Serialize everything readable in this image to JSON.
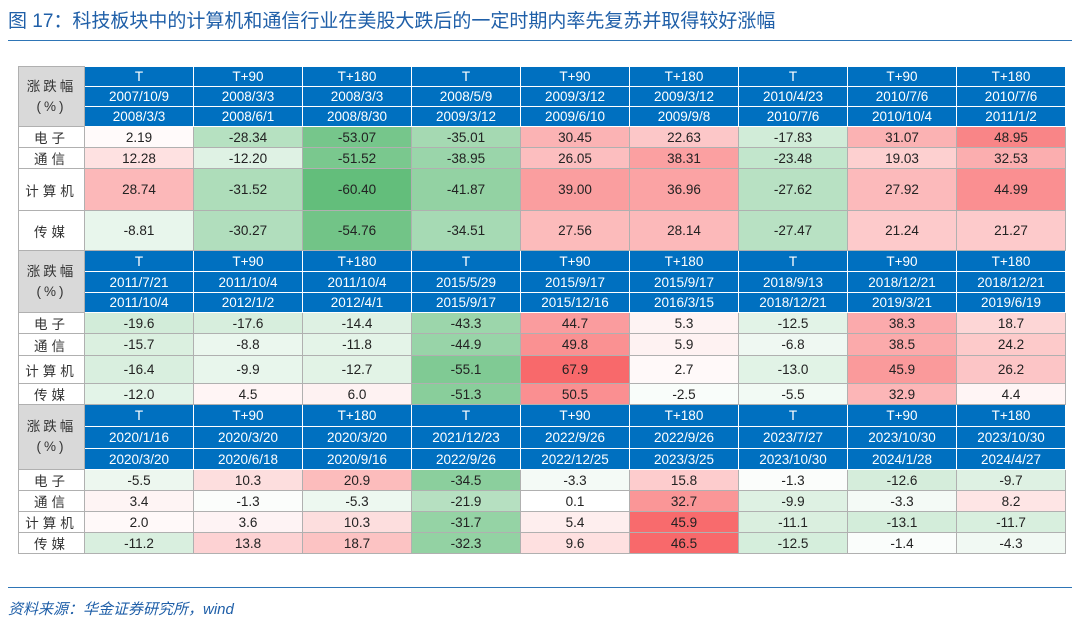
{
  "title": "图 17：科技板块中的计算机和通信行业在美股大跌后的一定时期内率先复苏并取得较好涨幅",
  "source": "资料来源：华金证券研究所，wind",
  "blocks": [
    {
      "label": [
        "涨跌幅",
        "(%)"
      ],
      "headers": [
        [
          "T",
          "T+90",
          "T+180",
          "T",
          "T+90",
          "T+180",
          "T",
          "T+90",
          "T+180"
        ],
        [
          "2007/10/9",
          "2008/3/3",
          "2008/3/3",
          "2008/5/9",
          "2009/3/12",
          "2009/3/12",
          "2010/4/23",
          "2010/7/6",
          "2010/7/6"
        ],
        [
          "2008/3/3",
          "2008/6/1",
          "2008/8/30",
          "2009/3/12",
          "2009/6/10",
          "2009/9/8",
          "2010/7/6",
          "2010/10/4",
          "2011/1/2"
        ]
      ],
      "rows": [
        {
          "name": "电子",
          "values": [
            "2.19",
            "-28.34",
            "-53.07",
            "-35.01",
            "30.45",
            "22.63",
            "-17.83",
            "31.07",
            "48.95"
          ]
        },
        {
          "name": "通信",
          "values": [
            "12.28",
            "-12.20",
            "-51.52",
            "-38.95",
            "26.05",
            "38.31",
            "-23.48",
            "19.03",
            "32.53"
          ]
        },
        {
          "name": "计算机",
          "values": [
            "28.74",
            "-31.52",
            "-60.40",
            "-41.87",
            "39.00",
            "36.96",
            "-27.62",
            "27.92",
            "44.99"
          ]
        },
        {
          "name": "传媒",
          "values": [
            "-8.81",
            "-30.27",
            "-54.76",
            "-34.51",
            "27.56",
            "28.14",
            "-27.47",
            "21.24",
            "21.27"
          ]
        }
      ]
    },
    {
      "label": [
        "涨跌幅",
        "(%)"
      ],
      "headers": [
        [
          "T",
          "T+90",
          "T+180",
          "T",
          "T+90",
          "T+180",
          "T",
          "T+90",
          "T+180"
        ],
        [
          "2011/7/21",
          "2011/10/4",
          "2011/10/4",
          "2015/5/29",
          "2015/9/17",
          "2015/9/17",
          "2018/9/13",
          "2018/12/21",
          "2018/12/21"
        ],
        [
          "2011/10/4",
          "2012/1/2",
          "2012/4/1",
          "2015/9/17",
          "2015/12/16",
          "2016/3/15",
          "2018/12/21",
          "2019/3/21",
          "2019/6/19"
        ]
      ],
      "rows": [
        {
          "name": "电子",
          "values": [
            "-19.6",
            "-17.6",
            "-14.4",
            "-43.3",
            "44.7",
            "5.3",
            "-12.5",
            "38.3",
            "18.7"
          ]
        },
        {
          "name": "通信",
          "values": [
            "-15.7",
            "-8.8",
            "-11.8",
            "-44.9",
            "49.8",
            "5.9",
            "-6.8",
            "38.5",
            "24.2"
          ]
        },
        {
          "name": "计算机",
          "values": [
            "-16.4",
            "-9.9",
            "-12.7",
            "-55.1",
            "67.9",
            "2.7",
            "-13.0",
            "45.9",
            "26.2"
          ]
        },
        {
          "name": "传媒",
          "values": [
            "-12.0",
            "4.5",
            "6.0",
            "-51.3",
            "50.5",
            "-2.5",
            "-5.5",
            "32.9",
            "4.4"
          ]
        }
      ]
    },
    {
      "label": [
        "涨跌幅",
        "(%)"
      ],
      "headers": [
        [
          "T",
          "T+90",
          "T+180",
          "T",
          "T+90",
          "T+180",
          "T",
          "T+90",
          "T+180"
        ],
        [
          "2020/1/16",
          "2020/3/20",
          "2020/3/20",
          "2021/12/23",
          "2022/9/26",
          "2022/9/26",
          "2023/7/27",
          "2023/10/30",
          "2023/10/30"
        ],
        [
          "2020/3/20",
          "2020/6/18",
          "2020/9/16",
          "2022/9/26",
          "2022/12/25",
          "2023/3/25",
          "2023/10/30",
          "2024/1/28",
          "2024/4/27"
        ]
      ],
      "rows": [
        {
          "name": "电子",
          "values": [
            "-5.5",
            "10.3",
            "20.9",
            "-34.5",
            "-3.3",
            "15.8",
            "-1.3",
            "-12.6",
            "-9.7"
          ]
        },
        {
          "name": "通信",
          "values": [
            "3.4",
            "-1.3",
            "-5.3",
            "-21.9",
            "0.1",
            "32.7",
            "-9.9",
            "-3.3",
            "8.2"
          ]
        },
        {
          "name": "计算机",
          "values": [
            "2.0",
            "3.6",
            "10.3",
            "-31.7",
            "5.4",
            "45.9",
            "-11.1",
            "-13.1",
            "-11.7"
          ]
        },
        {
          "name": "传媒",
          "values": [
            "-11.2",
            "13.8",
            "18.7",
            "-32.3",
            "9.6",
            "46.5",
            "-12.5",
            "-1.4",
            "-4.3"
          ]
        }
      ]
    }
  ]
}
